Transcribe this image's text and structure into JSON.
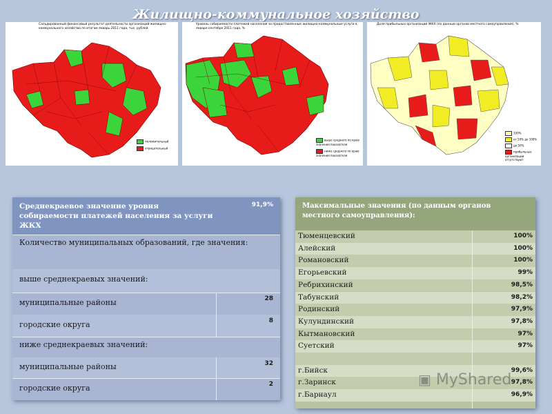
{
  "title": "Жилищно-коммунальное хозяйство",
  "maps": [
    {
      "caption": "Сальдированный финансовый результат деятельности организаций жилищно-коммунального хозяйства по итогам январь-2011 года, тыс. рублей",
      "legend": [
        {
          "label": "положительный",
          "color": "#3bd43b"
        },
        {
          "label": "отрицательный",
          "color": "#e81b1b"
        }
      ]
    },
    {
      "caption": "Уровень собираемости платежей населения за предоставленные жилищно-коммунальные услуги в январе-сентябре 2011 года, %",
      "legend": [
        {
          "label": "выше среднего по краю значения показателя",
          "color": "#3bd43b"
        },
        {
          "label": "ниже среднего по краю значения показателя",
          "color": "#e81b1b"
        }
      ]
    },
    {
      "caption": "Доля прибыльных организаций ЖКХ (по данным органов местного самоуправления), %",
      "legend": [
        {
          "label": "100%",
          "color": "#ffffc4"
        },
        {
          "label": "от 50% до 100%",
          "color": "#f2ec25"
        },
        {
          "label": "до 50%",
          "color": "#ffffff"
        },
        {
          "label": "прибыльные организации отсутствуют",
          "color": "#e81b1b"
        }
      ]
    }
  ],
  "left_table": {
    "header": "Среднекраевое значение уровня собираемости платежей населения за услуги ЖКХ",
    "header_value": "91,9%",
    "rows": [
      {
        "label": "Количество муниципальных образований, где значения:",
        "value": ""
      },
      {
        "label": "выше среднекраевых значений:",
        "value": ""
      },
      {
        "label": "муниципальные районы",
        "value": "28"
      },
      {
        "label": "городские округа",
        "value": "8"
      },
      {
        "label": "ниже среднекраевых значений:",
        "value": ""
      },
      {
        "label": "муниципальные районы",
        "value": "32"
      },
      {
        "label": "городские округа",
        "value": "2"
      }
    ]
  },
  "right_table": {
    "header": "Максимальные значения (по данным органов местного самоуправления):",
    "rows": [
      {
        "name": "Тюменцевский",
        "value": "100%"
      },
      {
        "name": "Алейский",
        "value": "100%"
      },
      {
        "name": "Романовский",
        "value": "100%"
      },
      {
        "name": "Егорьевский",
        "value": "99%"
      },
      {
        "name": "Ребрихинский",
        "value": "98,5%"
      },
      {
        "name": "Табунский",
        "value": "98,2%"
      },
      {
        "name": "Родинский",
        "value": "97,9%"
      },
      {
        "name": "Кулундинский",
        "value": "97,8%"
      },
      {
        "name": "Кытмановский",
        "value": "97%"
      },
      {
        "name": "Суетский",
        "value": "97%"
      },
      {
        "name": "",
        "value": ""
      },
      {
        "name": "г.Бийск",
        "value": "99,6%"
      },
      {
        "name": "г.Заринск",
        "value": "97,8%"
      },
      {
        "name": "г.Барнаул",
        "value": "96,9%"
      }
    ]
  },
  "watermark": "MyShared"
}
